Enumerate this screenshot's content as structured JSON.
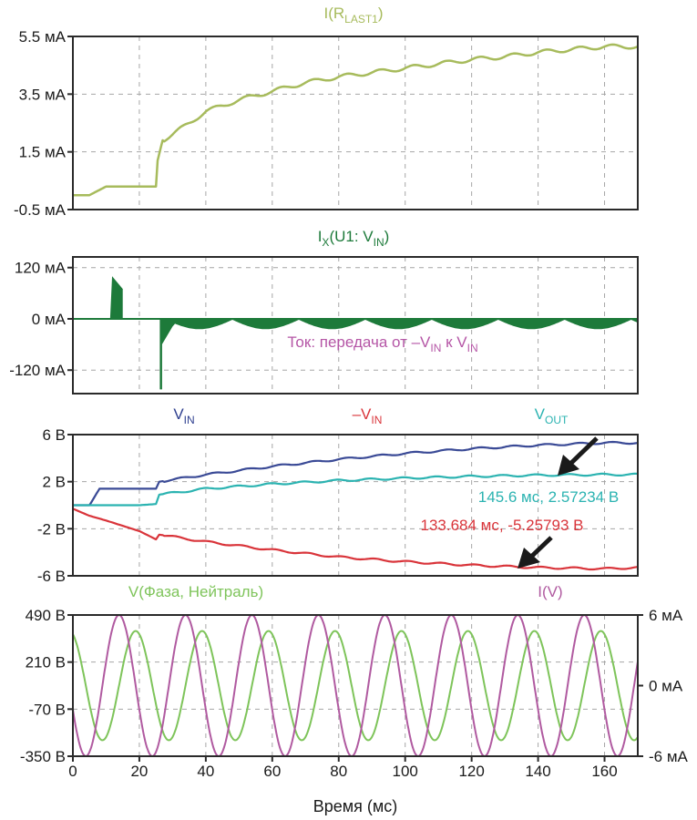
{
  "chart_data": [
    {
      "type": "line",
      "title": "I(R_LAST1)",
      "title_main": "I(R",
      "title_sub": "LAST1",
      "title_end": ")",
      "title_color": "#a7bb5c",
      "ylim": [
        -0.5,
        5.5
      ],
      "yticks": [
        -0.5,
        1.5,
        3.5,
        5.5
      ],
      "ytick_labels": [
        "-0.5 мА",
        "1.5 мА",
        "3.5 мА",
        "5.5 мА"
      ],
      "series": [
        {
          "color": "#a7bb5c",
          "x": [
            0,
            5,
            10,
            15,
            20,
            25,
            25.5,
            27,
            30,
            35,
            40,
            45,
            50,
            55,
            60,
            65,
            70,
            80,
            90,
            100,
            110,
            120,
            130,
            140,
            150,
            160,
            170
          ],
          "y": [
            0.0,
            0.0,
            0.3,
            0.3,
            0.3,
            0.3,
            1.2,
            1.9,
            2.1,
            2.5,
            2.9,
            3.1,
            3.3,
            3.45,
            3.6,
            3.75,
            3.9,
            4.1,
            4.25,
            4.4,
            4.55,
            4.7,
            4.8,
            4.95,
            5.05,
            5.15,
            5.15
          ]
        }
      ]
    },
    {
      "type": "line",
      "title": "IX(U1: VIN)",
      "title_main": "I",
      "title_sub": "X",
      "title_end": "(U1: V",
      "title_sub2": "IN",
      "title_end2": ")",
      "title_color": "#1d7a3a",
      "ylim": [
        -175,
        145
      ],
      "yticks": [
        -120,
        0,
        120
      ],
      "ytick_labels": [
        "-120 мА",
        "0 мА",
        "120 мА"
      ],
      "annotation": {
        "main": "Ток: передача от –V",
        "sub": "IN",
        "mid": " к V",
        "sub2": "IN",
        "color": "#b556a6"
      },
      "series": [
        {
          "color": "#1d7a3a",
          "description_points": {
            "spike_up": {
              "x": 11.5,
              "y": 100
            },
            "spike_down": {
              "x": 26.5,
              "y": -165
            },
            "ripple_min": -25,
            "ripple_period": 20
          }
        }
      ]
    },
    {
      "type": "line",
      "ylim": [
        -6,
        6
      ],
      "yticks": [
        -6,
        -2,
        2,
        6
      ],
      "ytick_labels": [
        "-6 В",
        "-2 В",
        "2 В",
        "6 В"
      ],
      "series_labels": [
        {
          "main": "V",
          "sub": "IN",
          "color": "#2e3f8f"
        },
        {
          "main": "–V",
          "sub": "IN",
          "color": "#d9343a"
        },
        {
          "main": "V",
          "sub": "OUT",
          "color": "#2bb3b1"
        }
      ],
      "series": [
        {
          "color": "#3a4a96",
          "x": [
            0,
            5,
            8,
            20,
            25,
            26,
            40,
            60,
            80,
            100,
            120,
            140,
            160,
            170
          ],
          "y": [
            0,
            0,
            1.4,
            1.4,
            1.4,
            2.0,
            2.6,
            3.3,
            3.9,
            4.4,
            4.8,
            5.1,
            5.3,
            5.3
          ]
        },
        {
          "color": "#d9343a",
          "x": [
            0,
            5,
            10,
            20,
            25,
            26,
            40,
            60,
            80,
            100,
            120,
            140,
            160,
            170
          ],
          "y": [
            -0.3,
            -0.9,
            -1.3,
            -2.2,
            -2.9,
            -2.5,
            -3.1,
            -3.8,
            -4.4,
            -4.8,
            -5.1,
            -5.3,
            -5.4,
            -5.3
          ]
        },
        {
          "color": "#2bb3b1",
          "x": [
            0,
            20,
            25,
            26,
            40,
            60,
            80,
            100,
            120,
            140,
            160,
            170
          ],
          "y": [
            0,
            0,
            0.1,
            0.9,
            1.4,
            1.8,
            2.1,
            2.3,
            2.45,
            2.55,
            2.6,
            2.6
          ]
        }
      ],
      "annotations": [
        {
          "text": "145.6 мс, 2.57234 В",
          "color": "#2bb3b1",
          "x": 145.6,
          "y": 2.57234
        },
        {
          "text": "133.684 мс, -5.25793 В",
          "color": "#d9343a",
          "x": 133.684,
          "y": -5.25793
        }
      ]
    },
    {
      "type": "line",
      "ylim_left": [
        -350,
        490
      ],
      "yticks_left": [
        -350,
        -70,
        210,
        490
      ],
      "ytick_labels_left": [
        "-350 В",
        "-70 В",
        "210 В",
        "490 В"
      ],
      "ylim_right": [
        -6,
        6
      ],
      "yticks_right": [
        -6,
        0,
        6
      ],
      "ytick_labels_right": [
        "-6 мА",
        "0 мА",
        "6 мА"
      ],
      "xlim": [
        0,
        170
      ],
      "xticks": [
        0,
        20,
        40,
        60,
        80,
        100,
        120,
        140,
        160
      ],
      "xtick_labels": [
        "0",
        "20",
        "40",
        "60",
        "80",
        "100",
        "120",
        "140",
        "160"
      ],
      "xlabel": "Время (мс)",
      "series": [
        {
          "name": "V(Фаза, Нейтраль)",
          "color": "#7ec45a",
          "axis": "left",
          "amplitude": 325,
          "offset": 70,
          "period": 20,
          "phase_deg": 110
        },
        {
          "name": "I(V)",
          "color": "#b05aa0",
          "axis": "right",
          "amplitude": 6,
          "offset": 0,
          "period": 20,
          "phase_deg": 200
        }
      ]
    }
  ],
  "colors": {
    "frame": "#2a2a2a",
    "grid": "#a6a6a6"
  }
}
